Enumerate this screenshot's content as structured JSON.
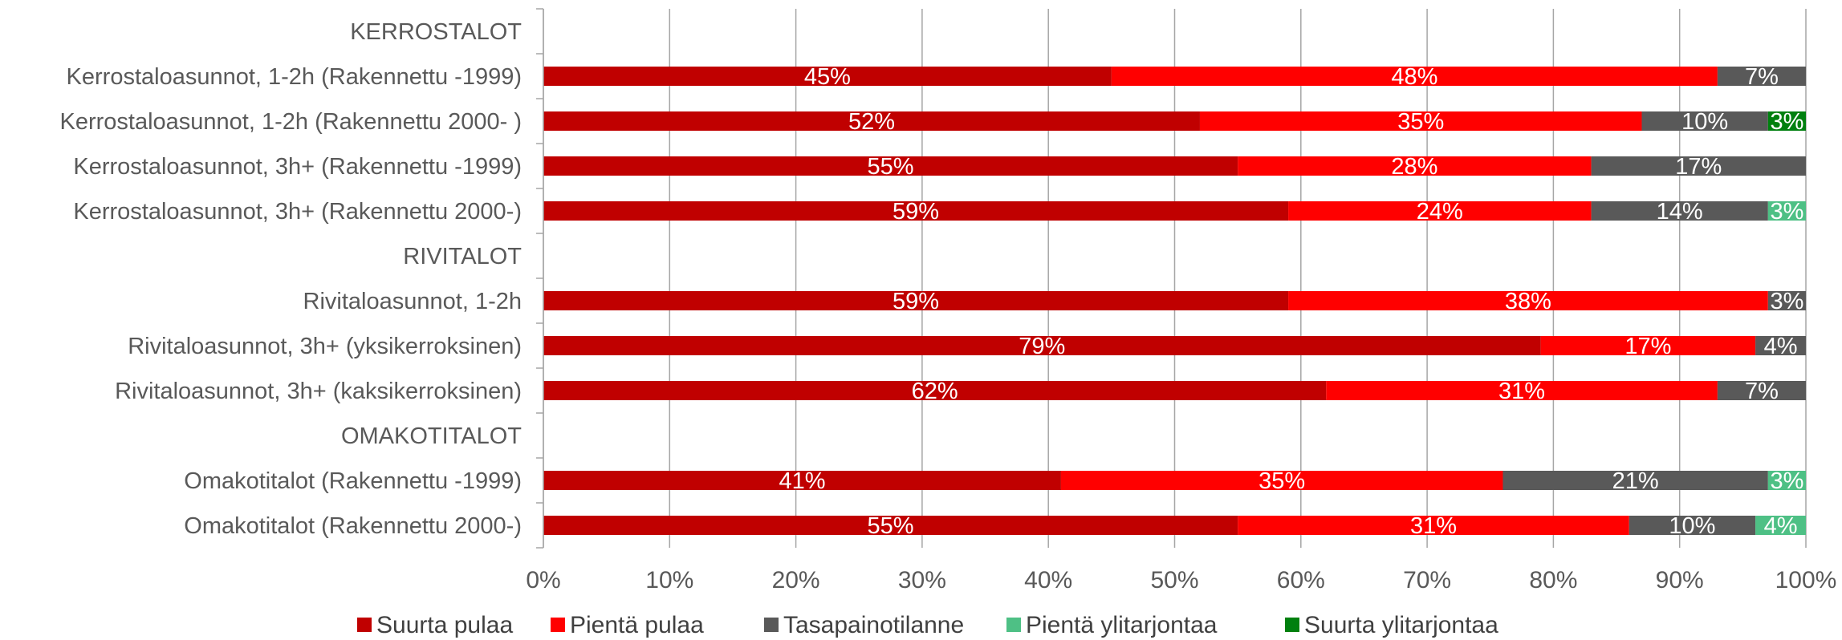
{
  "chart_data": {
    "type": "bar",
    "orientation": "horizontal",
    "stacked": "percent",
    "rows": [
      {
        "label": "KERROSTALOT",
        "kind": "header"
      },
      {
        "label": "Kerrostaloasunnot, 1-2h (Rakennettu -1999)",
        "values": [
          45,
          48,
          7,
          0,
          0
        ]
      },
      {
        "label": "Kerrostaloasunnot, 1-2h (Rakennettu 2000- )",
        "values": [
          52,
          35,
          10,
          0,
          3
        ]
      },
      {
        "label": "Kerrostaloasunnot, 3h+ (Rakennettu -1999)",
        "values": [
          55,
          28,
          17,
          0,
          0
        ]
      },
      {
        "label": "Kerrostaloasunnot, 3h+ (Rakennettu 2000-)",
        "values": [
          59,
          24,
          14,
          3,
          0
        ]
      },
      {
        "label": "RIVITALOT",
        "kind": "header"
      },
      {
        "label": "Rivitaloasunnot, 1-2h",
        "values": [
          59,
          38,
          3,
          0,
          0
        ]
      },
      {
        "label": "Rivitaloasunnot, 3h+ (yksikerroksinen)",
        "values": [
          79,
          17,
          4,
          0,
          0
        ]
      },
      {
        "label": "Rivitaloasunnot, 3h+ (kaksikerroksinen)",
        "values": [
          62,
          31,
          7,
          0,
          0
        ]
      },
      {
        "label": "OMAKOTITALOT",
        "kind": "header"
      },
      {
        "label": "Omakotitalot (Rakennettu -1999)",
        "values": [
          41,
          35,
          21,
          3,
          0
        ]
      },
      {
        "label": "Omakotitalot (Rakennettu 2000-)",
        "values": [
          55,
          31,
          10,
          4,
          0
        ]
      }
    ],
    "series": [
      {
        "name": "Suurta pulaa",
        "color": "#c00000"
      },
      {
        "name": "Pientä pulaa",
        "color": "#ff0000"
      },
      {
        "name": "Tasapainotilanne",
        "color": "#595959"
      },
      {
        "name": "Pientä ylitarjontaa",
        "color": "#4ec085"
      },
      {
        "name": "Suurta ylitarjontaa",
        "color": "#00800f"
      }
    ],
    "x_ticks": [
      "0%",
      "10%",
      "20%",
      "30%",
      "40%",
      "50%",
      "60%",
      "70%",
      "80%",
      "90%",
      "100%"
    ],
    "xlim": [
      0,
      100
    ],
    "grid": true,
    "legend_position": "bottom"
  }
}
